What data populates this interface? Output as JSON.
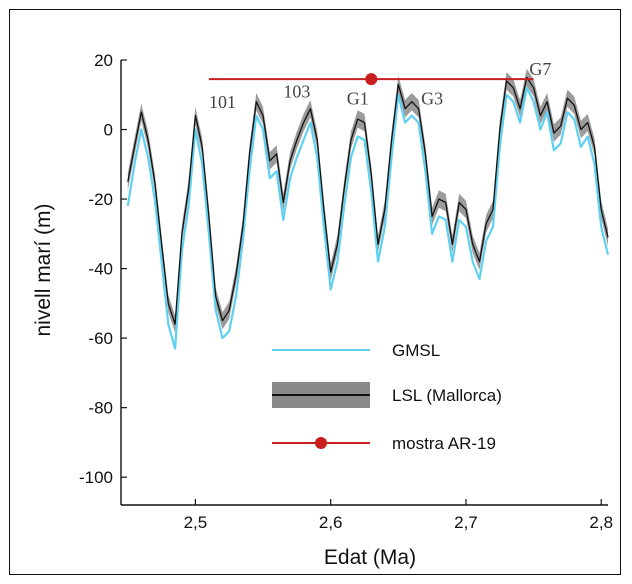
{
  "chart_data": {
    "type": "line",
    "xlabel": "Edat  (Ma)",
    "ylabel": "nivell marí (m)",
    "xlim": [
      2.445,
      2.805
    ],
    "ylim": [
      -108,
      20
    ],
    "xticks": [
      2.5,
      2.6,
      2.7,
      2.8
    ],
    "xtick_labels": [
      "2,5",
      "2,6",
      "2,7",
      "2,8"
    ],
    "yticks": [
      20,
      0,
      -20,
      -40,
      -60,
      -80,
      -100
    ],
    "ytick_labels": [
      "20",
      "0",
      "-20",
      "-40",
      "-60",
      "-80",
      "-100"
    ],
    "grid": false,
    "legend_position": "bottom-right",
    "colors": {
      "gmsl": "#5fd0f0",
      "lsl_line": "#111111",
      "lsl_band": "#8a8a8a",
      "sample": "#c81e1e"
    },
    "series": [
      {
        "name": "GMSL",
        "x": [
          2.45,
          2.455,
          2.46,
          2.465,
          2.47,
          2.475,
          2.48,
          2.485,
          2.49,
          2.495,
          2.5,
          2.505,
          2.51,
          2.515,
          2.52,
          2.525,
          2.53,
          2.535,
          2.54,
          2.545,
          2.55,
          2.555,
          2.56,
          2.565,
          2.57,
          2.575,
          2.58,
          2.585,
          2.59,
          2.595,
          2.6,
          2.605,
          2.61,
          2.615,
          2.62,
          2.625,
          2.63,
          2.635,
          2.64,
          2.645,
          2.65,
          2.655,
          2.66,
          2.665,
          2.67,
          2.675,
          2.68,
          2.685,
          2.69,
          2.695,
          2.7,
          2.705,
          2.71,
          2.715,
          2.72,
          2.725,
          2.73,
          2.735,
          2.74,
          2.745,
          2.75,
          2.755,
          2.76,
          2.765,
          2.77,
          2.775,
          2.78,
          2.785,
          2.79,
          2.795,
          2.8,
          2.805
        ],
        "y": [
          -22,
          -10,
          0,
          -8,
          -20,
          -38,
          -56,
          -63,
          -35,
          -22,
          0,
          -10,
          -30,
          -52,
          -60,
          -58,
          -48,
          -32,
          -12,
          4,
          0,
          -14,
          -12,
          -26,
          -14,
          -8,
          -3,
          2,
          -8,
          -28,
          -46,
          -38,
          -22,
          -8,
          -2,
          -3,
          -18,
          -38,
          -28,
          -8,
          10,
          2,
          4,
          2,
          -12,
          -30,
          -25,
          -26,
          -38,
          -26,
          -28,
          -38,
          -43,
          -32,
          -28,
          -5,
          10,
          8,
          2,
          12,
          8,
          0,
          5,
          -6,
          -4,
          5,
          3,
          -5,
          -2,
          -10,
          -28,
          -36
        ]
      },
      {
        "name": "LSL (Mallorca)",
        "x": [
          2.45,
          2.455,
          2.46,
          2.465,
          2.47,
          2.475,
          2.48,
          2.485,
          2.49,
          2.495,
          2.5,
          2.505,
          2.51,
          2.515,
          2.52,
          2.525,
          2.53,
          2.535,
          2.54,
          2.545,
          2.55,
          2.555,
          2.56,
          2.565,
          2.57,
          2.575,
          2.58,
          2.585,
          2.59,
          2.595,
          2.6,
          2.605,
          2.61,
          2.615,
          2.62,
          2.625,
          2.63,
          2.635,
          2.64,
          2.645,
          2.65,
          2.655,
          2.66,
          2.665,
          2.67,
          2.675,
          2.68,
          2.685,
          2.69,
          2.695,
          2.7,
          2.705,
          2.71,
          2.715,
          2.72,
          2.725,
          2.73,
          2.735,
          2.74,
          2.745,
          2.75,
          2.755,
          2.76,
          2.765,
          2.77,
          2.775,
          2.78,
          2.785,
          2.79,
          2.795,
          2.8,
          2.805
        ],
        "y": [
          -15,
          -5,
          5,
          -3,
          -15,
          -33,
          -50,
          -56,
          -30,
          -17,
          4,
          -5,
          -25,
          -48,
          -55,
          -52,
          -42,
          -28,
          -7,
          8,
          4,
          -9,
          -7,
          -21,
          -9,
          -3,
          2,
          6,
          -3,
          -23,
          -41,
          -33,
          -17,
          -3,
          3,
          2,
          -13,
          -33,
          -23,
          -3,
          13,
          6,
          8,
          6,
          -7,
          -25,
          -20,
          -21,
          -33,
          -21,
          -23,
          -33,
          -38,
          -27,
          -23,
          0,
          14,
          12,
          6,
          15,
          12,
          4,
          8,
          -1,
          1,
          9,
          7,
          0,
          2,
          -5,
          -23,
          -31
        ],
        "band": 2.5
      }
    ],
    "sample": {
      "name": "mostra AR-19",
      "xmin": 2.51,
      "xmax": 2.75,
      "y": 14.5,
      "point_x": 2.63
    },
    "annotations": [
      {
        "text": "101",
        "x": 2.52,
        "y": 5
      },
      {
        "text": "103",
        "x": 2.575,
        "y": 8
      },
      {
        "text": "G1",
        "x": 2.62,
        "y": 6
      },
      {
        "text": "G3",
        "x": 2.675,
        "y": 6
      },
      {
        "text": "G7",
        "x": 2.755,
        "y": 14.5
      }
    ]
  }
}
